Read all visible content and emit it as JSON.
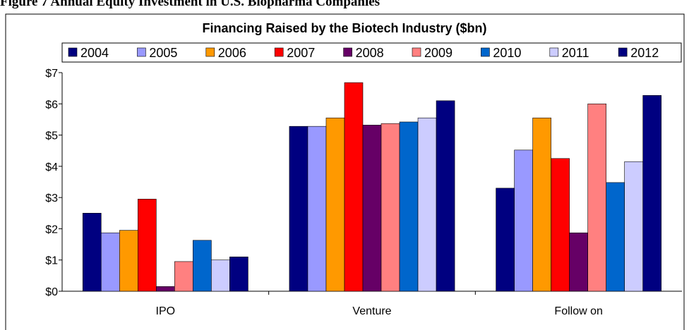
{
  "caption": "Figure 7 Annual Equity Investment in U.S. Biopharma Companies",
  "chart_data": {
    "type": "bar",
    "title": "Financing Raised by the Biotech Industry ($bn)",
    "categories": [
      "IPO",
      "Venture",
      "Follow on"
    ],
    "series": [
      {
        "name": "2004",
        "color": "#000080",
        "values": [
          2.5,
          5.28,
          3.3
        ]
      },
      {
        "name": "2005",
        "color": "#9999ff",
        "values": [
          1.87,
          5.28,
          4.52
        ]
      },
      {
        "name": "2006",
        "color": "#ff9900",
        "values": [
          1.95,
          5.55,
          5.55
        ]
      },
      {
        "name": "2007",
        "color": "#ff0000",
        "values": [
          2.95,
          6.68,
          4.25
        ]
      },
      {
        "name": "2008",
        "color": "#660066",
        "values": [
          0.15,
          5.32,
          1.87
        ]
      },
      {
        "name": "2009",
        "color": "#ff8080",
        "values": [
          0.95,
          5.37,
          6.0
        ]
      },
      {
        "name": "2010",
        "color": "#0066cc",
        "values": [
          1.63,
          5.42,
          3.48
        ]
      },
      {
        "name": "2011",
        "color": "#ccccff",
        "values": [
          1.0,
          5.55,
          4.15
        ]
      },
      {
        "name": "2012",
        "color": "#000080",
        "values": [
          1.1,
          6.1,
          6.27
        ]
      }
    ],
    "ylim": [
      0,
      7
    ],
    "yticks": [
      {
        "value": 0,
        "label": "$0"
      },
      {
        "value": 1,
        "label": "$1"
      },
      {
        "value": 2,
        "label": "$2"
      },
      {
        "value": 3,
        "label": "$3"
      },
      {
        "value": 4,
        "label": "$4"
      },
      {
        "value": 5,
        "label": "$5"
      },
      {
        "value": 6,
        "label": "$6"
      },
      {
        "value": 7,
        "label": "$7"
      }
    ],
    "grid": false,
    "legend": "top"
  }
}
